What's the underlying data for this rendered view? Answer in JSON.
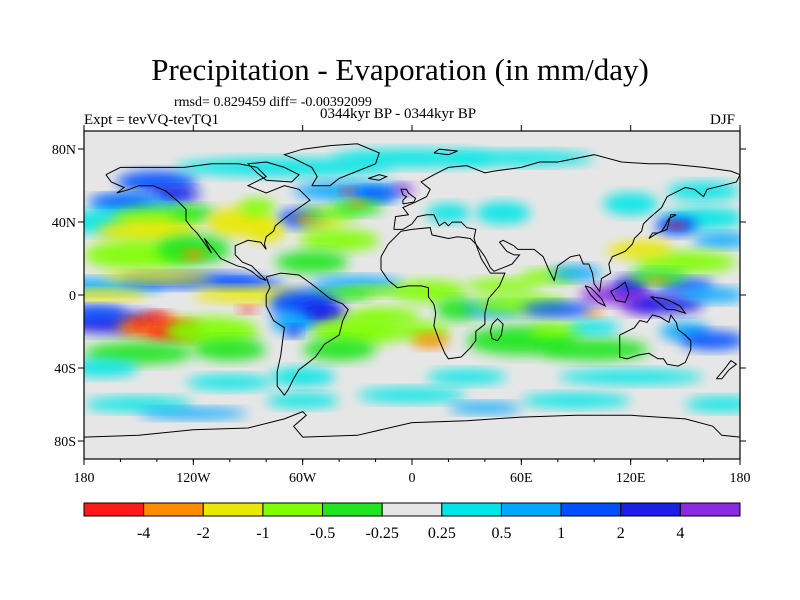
{
  "title": "Precipitation - Evaporation (in mm/day)",
  "stats": "rmsd= 0.829459 diff= -0.00392099",
  "experiment": "Expt = tevVQ-tevTQ1",
  "period": "0344kyr BP - 0344kyr BP",
  "season": "DJF",
  "map": {
    "projection": "cylindrical-equidistant",
    "lon_range": [
      -180,
      180
    ],
    "lat_range": [
      -90,
      90
    ],
    "background_value": "near-zero",
    "lat_ticks": [
      "80N",
      "40N",
      "0",
      "40S",
      "80S"
    ],
    "lon_ticks": [
      "180",
      "120W",
      "60W",
      "0",
      "60E",
      "120E",
      "180"
    ]
  },
  "colorbar": {
    "colors": [
      "#ff1a1a",
      "#ff8c00",
      "#e8e800",
      "#7fff00",
      "#1ee61e",
      "#e6e6e6",
      "#00e6e6",
      "#00a8ff",
      "#0050ff",
      "#1e1ee6",
      "#8a2be2"
    ],
    "labels": [
      "-4",
      "-2",
      "-1",
      "-0.5",
      "-0.25",
      "0.25",
      "0.5",
      "1",
      "2",
      "4"
    ]
  }
}
